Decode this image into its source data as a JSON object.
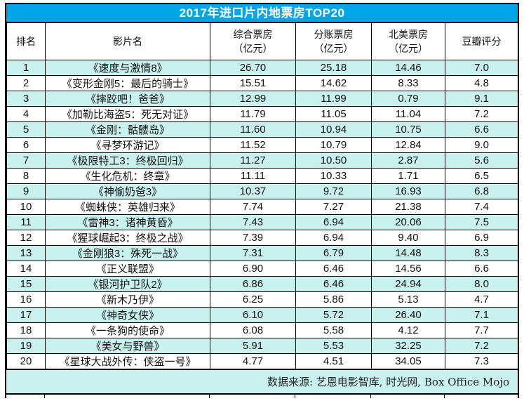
{
  "table": {
    "title": "2017年进口片内地票房TOP20",
    "columns": [
      {
        "line1": "排名",
        "line2": ""
      },
      {
        "line1": "影片名",
        "line2": ""
      },
      {
        "line1": "综合票房",
        "line2": "（亿元）"
      },
      {
        "line1": "分账票房",
        "line2": "（亿元）"
      },
      {
        "line1": "北美票房",
        "line2": "（亿元）"
      },
      {
        "line1": "豆瓣评分",
        "line2": ""
      }
    ],
    "rows": [
      {
        "rank": "1",
        "name": "《速度与激情8》",
        "gross": "26.70",
        "split": "25.18",
        "na": "14.46",
        "douban": "7.0"
      },
      {
        "rank": "2",
        "name": "《变形金刚5：最后的骑士》",
        "gross": "15.51",
        "split": "14.62",
        "na": "8.33",
        "douban": "4.8"
      },
      {
        "rank": "3",
        "name": "《摔跤吧！爸爸》",
        "gross": "12.99",
        "split": "11.99",
        "na": "0.79",
        "douban": "9.1"
      },
      {
        "rank": "4",
        "name": "《加勒比海盗5：死无对证》",
        "gross": "11.79",
        "split": "11.05",
        "na": "11.04",
        "douban": "7.2"
      },
      {
        "rank": "5",
        "name": "《金刚：骷髅岛》",
        "gross": "11.60",
        "split": "10.94",
        "na": "10.75",
        "douban": "6.6"
      },
      {
        "rank": "6",
        "name": "《寻梦环游记》",
        "gross": "11.52",
        "split": "10.79",
        "na": "12.84",
        "douban": "9.0"
      },
      {
        "rank": "7",
        "name": "《极限特工3：终极回归》",
        "gross": "11.27",
        "split": "10.50",
        "na": "2.87",
        "douban": "5.6"
      },
      {
        "rank": "8",
        "name": "《生化危机：终章》",
        "gross": "11.11",
        "split": "10.33",
        "na": "1.71",
        "douban": "6.5"
      },
      {
        "rank": "9",
        "name": "《神偷奶爸3》",
        "gross": "10.37",
        "split": "9.72",
        "na": "16.93",
        "douban": "6.8"
      },
      {
        "rank": "10",
        "name": "《蜘蛛侠：英雄归来》",
        "gross": "7.74",
        "split": "7.27",
        "na": "21.38",
        "douban": "7.4"
      },
      {
        "rank": "11",
        "name": "《雷神3：诸神黄昏》",
        "gross": "7.43",
        "split": "6.94",
        "na": "20.06",
        "douban": "7.5"
      },
      {
        "rank": "12",
        "name": "《猩球崛起3：终极之战》",
        "gross": "7.39",
        "split": "6.94",
        "na": "9.40",
        "douban": "6.9"
      },
      {
        "rank": "13",
        "name": "《金刚狼3：殊死一战》",
        "gross": "7.31",
        "split": "6.79",
        "na": "14.48",
        "douban": "8.3"
      },
      {
        "rank": "14",
        "name": "《正义联盟》",
        "gross": "6.90",
        "split": "6.46",
        "na": "14.56",
        "douban": "6.6"
      },
      {
        "rank": "15",
        "name": "《银河护卫队2》",
        "gross": "6.86",
        "split": "6.46",
        "na": "24.94",
        "douban": "8.0"
      },
      {
        "rank": "16",
        "name": "《新木乃伊》",
        "gross": "6.25",
        "split": "5.86",
        "na": "5.13",
        "douban": "4.7"
      },
      {
        "rank": "17",
        "name": "《神奇女侠》",
        "gross": "6.10",
        "split": "5.72",
        "na": "26.40",
        "douban": "7.1"
      },
      {
        "rank": "18",
        "name": "《一条狗的使命》",
        "gross": "6.08",
        "split": "5.58",
        "na": "4.12",
        "douban": "7.7"
      },
      {
        "rank": "19",
        "name": "《美女与野兽》",
        "gross": "5.91",
        "split": "5.53",
        "na": "32.25",
        "douban": "7.2"
      },
      {
        "rank": "20",
        "name": "《星球大战外传：侠盗一号》",
        "gross": "4.77",
        "split": "4.51",
        "na": "34.05",
        "douban": "7.3"
      }
    ],
    "source_note": "数据来源: 艺恩电影智库, 时光网, Box Office Mojo"
  },
  "colors": {
    "title_bar": "#00A6E8",
    "alt_row": "#C9F2EF",
    "border": "#000000",
    "title_text": "#FFFFFF"
  },
  "chart_data": {
    "type": "table",
    "title": "2017年进口片内地票房TOP20",
    "columns": [
      "排名",
      "影片名",
      "综合票房（亿元）",
      "分账票房（亿元）",
      "北美票房（亿元）",
      "豆瓣评分"
    ],
    "rows": [
      [
        1,
        "《速度与激情8》",
        26.7,
        25.18,
        14.46,
        7.0
      ],
      [
        2,
        "《变形金刚5：最后的骑士》",
        15.51,
        14.62,
        8.33,
        4.8
      ],
      [
        3,
        "《摔跤吧！爸爸》",
        12.99,
        11.99,
        0.79,
        9.1
      ],
      [
        4,
        "《加勒比海盗5：死无对证》",
        11.79,
        11.05,
        11.04,
        7.2
      ],
      [
        5,
        "《金刚：骷髅岛》",
        11.6,
        10.94,
        10.75,
        6.6
      ],
      [
        6,
        "《寻梦环游记》",
        11.52,
        10.79,
        12.84,
        9.0
      ],
      [
        7,
        "《极限特工3：终极回归》",
        11.27,
        10.5,
        2.87,
        5.6
      ],
      [
        8,
        "《生化危机：终章》",
        11.11,
        10.33,
        1.71,
        6.5
      ],
      [
        9,
        "《神偷奶爸3》",
        10.37,
        9.72,
        16.93,
        6.8
      ],
      [
        10,
        "《蜘蛛侠：英雄归来》",
        7.74,
        7.27,
        21.38,
        7.4
      ],
      [
        11,
        "《雷神3：诸神黄昏》",
        7.43,
        6.94,
        20.06,
        7.5
      ],
      [
        12,
        "《猩球崛起3：终极之战》",
        7.39,
        6.94,
        9.4,
        6.9
      ],
      [
        13,
        "《金刚狼3：殊死一战》",
        7.31,
        6.79,
        14.48,
        8.3
      ],
      [
        14,
        "《正义联盟》",
        6.9,
        6.46,
        14.56,
        6.6
      ],
      [
        15,
        "《银河护卫队2》",
        6.86,
        6.46,
        24.94,
        8.0
      ],
      [
        16,
        "《新木乃伊》",
        6.25,
        5.86,
        5.13,
        4.7
      ],
      [
        17,
        "《神奇女侠》",
        6.1,
        5.72,
        26.4,
        7.1
      ],
      [
        18,
        "《一条狗的使命》",
        6.08,
        5.58,
        4.12,
        7.7
      ],
      [
        19,
        "《美女与野兽》",
        5.91,
        5.53,
        32.25,
        7.2
      ],
      [
        20,
        "《星球大战外传：侠盗一号》",
        4.77,
        4.51,
        34.05,
        7.3
      ]
    ],
    "source_note": "数据来源: 艺恩电影智库, 时光网, Box Office Mojo",
    "layout": {
      "alternating_row_fill": true,
      "header_lines": 2,
      "grid": true
    }
  }
}
